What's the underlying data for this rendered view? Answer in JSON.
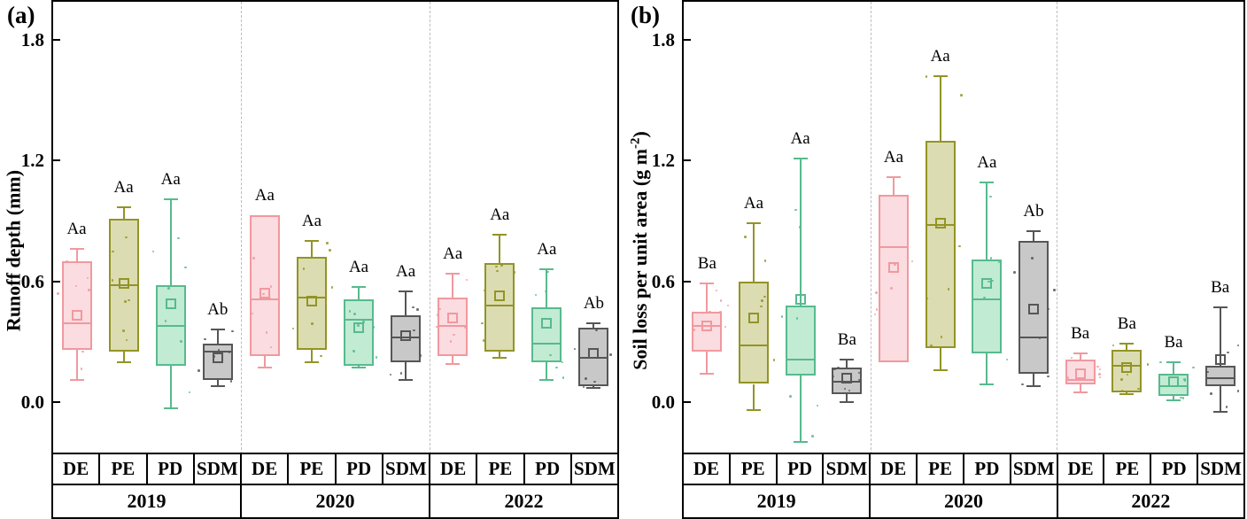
{
  "colors": {
    "axis": "#000000",
    "separator": "#bcbcbc",
    "treatments": {
      "DE": {
        "fill": "#fbdce0",
        "edge": "#f0999f"
      },
      "PE": {
        "fill": "#dcdcb2",
        "edge": "#929425"
      },
      "PD": {
        "fill": "#c2ebd4",
        "edge": "#57ba8d"
      },
      "SDM": {
        "fill": "#c8c8c8",
        "edge": "#565656"
      }
    }
  },
  "chart_data": [
    {
      "type": "boxplot",
      "panel_label": "(a)",
      "ylabel": "Runoff depth (mm)",
      "ylabel_parts": {
        "pre": "Runoff depth (mm)",
        "sup": "",
        "post": ""
      },
      "ylim": [
        -0.26,
        1.99
      ],
      "yticks": [
        0.0,
        0.6,
        1.2,
        1.8
      ],
      "grid": false,
      "categories": [
        "2019",
        "2020",
        "2022"
      ],
      "treatments": [
        "DE",
        "PE",
        "PD",
        "SDM"
      ],
      "boxes": [
        {
          "year": "2019",
          "treatment": "DE",
          "low": 0.11,
          "q1": 0.26,
          "median": 0.39,
          "mean": 0.43,
          "q3": 0.7,
          "high": 0.76,
          "sig_label": "Aa"
        },
        {
          "year": "2019",
          "treatment": "PE",
          "low": 0.2,
          "q1": 0.25,
          "median": 0.58,
          "mean": 0.59,
          "q3": 0.91,
          "high": 0.97,
          "sig_label": "Aa"
        },
        {
          "year": "2019",
          "treatment": "PD",
          "low": -0.03,
          "q1": 0.18,
          "median": 0.38,
          "mean": 0.49,
          "q3": 0.58,
          "high": 1.01,
          "sig_label": "Aa"
        },
        {
          "year": "2019",
          "treatment": "SDM",
          "low": 0.08,
          "q1": 0.11,
          "median": 0.25,
          "mean": 0.22,
          "q3": 0.29,
          "high": 0.36,
          "sig_label": "Ab"
        },
        {
          "year": "2020",
          "treatment": "DE",
          "low": 0.17,
          "q1": 0.23,
          "median": 0.51,
          "mean": 0.54,
          "q3": 0.93,
          "high": 0.91,
          "sig_label": "Aa"
        },
        {
          "year": "2020",
          "treatment": "PE",
          "low": 0.2,
          "q1": 0.26,
          "median": 0.52,
          "mean": 0.5,
          "q3": 0.72,
          "high": 0.8,
          "sig_label": "Aa"
        },
        {
          "year": "2020",
          "treatment": "PD",
          "low": 0.17,
          "q1": 0.18,
          "median": 0.41,
          "mean": 0.37,
          "q3": 0.51,
          "high": 0.57,
          "sig_label": "Aa"
        },
        {
          "year": "2020",
          "treatment": "SDM",
          "low": 0.11,
          "q1": 0.2,
          "median": 0.32,
          "mean": 0.33,
          "q3": 0.43,
          "high": 0.55,
          "sig_label": "Aa"
        },
        {
          "year": "2022",
          "treatment": "DE",
          "low": 0.19,
          "q1": 0.23,
          "median": 0.38,
          "mean": 0.42,
          "q3": 0.52,
          "high": 0.64,
          "sig_label": "Aa"
        },
        {
          "year": "2022",
          "treatment": "PE",
          "low": 0.22,
          "q1": 0.25,
          "median": 0.48,
          "mean": 0.53,
          "q3": 0.69,
          "high": 0.83,
          "sig_label": "Aa"
        },
        {
          "year": "2022",
          "treatment": "PD",
          "low": 0.11,
          "q1": 0.2,
          "median": 0.29,
          "mean": 0.39,
          "q3": 0.47,
          "high": 0.66,
          "sig_label": "Aa"
        },
        {
          "year": "2022",
          "treatment": "SDM",
          "low": 0.07,
          "q1": 0.08,
          "median": 0.22,
          "mean": 0.24,
          "q3": 0.37,
          "high": 0.39,
          "sig_label": "Ab"
        }
      ]
    },
    {
      "type": "boxplot",
      "panel_label": "(b)",
      "ylabel": "Soil loss per unit area (g m-2)",
      "ylabel_parts": {
        "pre": "Soil loss per unit area (g m",
        "sup": "-2",
        "post": ")"
      },
      "ylim": [
        -0.26,
        1.99
      ],
      "yticks": [
        0.0,
        0.6,
        1.2,
        1.8
      ],
      "grid": false,
      "categories": [
        "2019",
        "2020",
        "2022"
      ],
      "treatments": [
        "DE",
        "PE",
        "PD",
        "SDM"
      ],
      "boxes": [
        {
          "year": "2019",
          "treatment": "DE",
          "low": 0.14,
          "q1": 0.25,
          "median": 0.38,
          "mean": 0.38,
          "q3": 0.45,
          "high": 0.59,
          "sig_label": "Ba"
        },
        {
          "year": "2019",
          "treatment": "PE",
          "low": -0.04,
          "q1": 0.09,
          "median": 0.28,
          "mean": 0.42,
          "q3": 0.6,
          "high": 0.89,
          "sig_label": "Aa"
        },
        {
          "year": "2019",
          "treatment": "PD",
          "low": -0.2,
          "q1": 0.13,
          "median": 0.21,
          "mean": 0.51,
          "q3": 0.48,
          "high": 1.21,
          "sig_label": "Aa"
        },
        {
          "year": "2019",
          "treatment": "SDM",
          "low": 0.0,
          "q1": 0.04,
          "median": 0.1,
          "mean": 0.12,
          "q3": 0.17,
          "high": 0.21,
          "sig_label": "Ba"
        },
        {
          "year": "2020",
          "treatment": "DE",
          "low": 0.24,
          "q1": 0.2,
          "median": 0.77,
          "mean": 0.67,
          "q3": 1.03,
          "high": 1.12,
          "sig_label": "Aa"
        },
        {
          "year": "2020",
          "treatment": "PE",
          "low": 0.16,
          "q1": 0.27,
          "median": 0.88,
          "mean": 0.89,
          "q3": 1.3,
          "high": 1.62,
          "sig_label": "Aa"
        },
        {
          "year": "2020",
          "treatment": "PD",
          "low": 0.09,
          "q1": 0.24,
          "median": 0.51,
          "mean": 0.59,
          "q3": 0.71,
          "high": 1.09,
          "sig_label": "Aa"
        },
        {
          "year": "2020",
          "treatment": "SDM",
          "low": 0.08,
          "q1": 0.14,
          "median": 0.32,
          "mean": 0.46,
          "q3": 0.8,
          "high": 0.85,
          "sig_label": "Ab"
        },
        {
          "year": "2022",
          "treatment": "DE",
          "low": 0.05,
          "q1": 0.09,
          "median": 0.11,
          "mean": 0.14,
          "q3": 0.21,
          "high": 0.24,
          "sig_label": "Ba"
        },
        {
          "year": "2022",
          "treatment": "PE",
          "low": 0.04,
          "q1": 0.05,
          "median": 0.18,
          "mean": 0.17,
          "q3": 0.26,
          "high": 0.29,
          "sig_label": "Ba"
        },
        {
          "year": "2022",
          "treatment": "PD",
          "low": 0.01,
          "q1": 0.03,
          "median": 0.08,
          "mean": 0.1,
          "q3": 0.14,
          "high": 0.2,
          "sig_label": "Ba"
        },
        {
          "year": "2022",
          "treatment": "SDM",
          "low": -0.05,
          "q1": 0.08,
          "median": 0.12,
          "mean": 0.21,
          "q3": 0.18,
          "high": 0.47,
          "sig_label": "Ba"
        }
      ]
    }
  ]
}
